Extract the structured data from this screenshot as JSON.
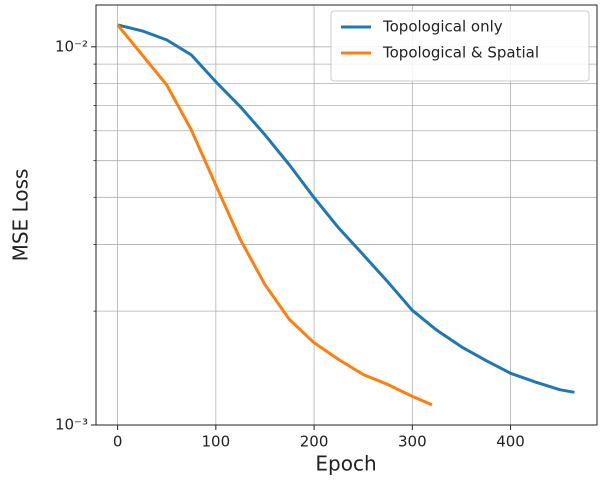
{
  "chart_data": {
    "type": "line",
    "xlabel": "Epoch",
    "ylabel": "MSE Loss",
    "yscale": "log",
    "grid": true,
    "legend": "upper right",
    "xlim": [
      -22,
      488
    ],
    "ylim": [
      0.001,
      0.0129
    ],
    "xticks": [
      0,
      100,
      200,
      300,
      400
    ],
    "yticks": [
      {
        "value": 0.001,
        "label": "10⁻³"
      },
      {
        "value": 0.01,
        "label": "10⁻²"
      }
    ],
    "yminorticks": [
      0.002,
      0.003,
      0.004,
      0.005,
      0.006,
      0.007,
      0.008,
      0.009
    ],
    "series": [
      {
        "name": "Topological only",
        "color": "#1f77b4",
        "x": [
          0,
          25,
          50,
          75,
          100,
          125,
          150,
          175,
          200,
          225,
          250,
          275,
          300,
          325,
          350,
          375,
          400,
          425,
          450,
          465
        ],
        "values": [
          0.01143,
          0.01102,
          0.01043,
          0.00952,
          0.00808,
          0.00694,
          0.00585,
          0.00487,
          0.00399,
          0.00332,
          0.00282,
          0.00239,
          0.00201,
          0.00178,
          0.00161,
          0.00148,
          0.00137,
          0.0013,
          0.00124,
          0.00122
        ]
      },
      {
        "name": "Topological & Spatial",
        "color": "#ff7f0e",
        "x": [
          0,
          25,
          50,
          75,
          100,
          125,
          150,
          175,
          200,
          225,
          250,
          275,
          300,
          320
        ],
        "values": [
          0.01143,
          0.00952,
          0.00793,
          0.00603,
          0.00431,
          0.00309,
          0.00235,
          0.0019,
          0.00165,
          0.00149,
          0.00136,
          0.00128,
          0.00119,
          0.00113
        ]
      }
    ]
  }
}
